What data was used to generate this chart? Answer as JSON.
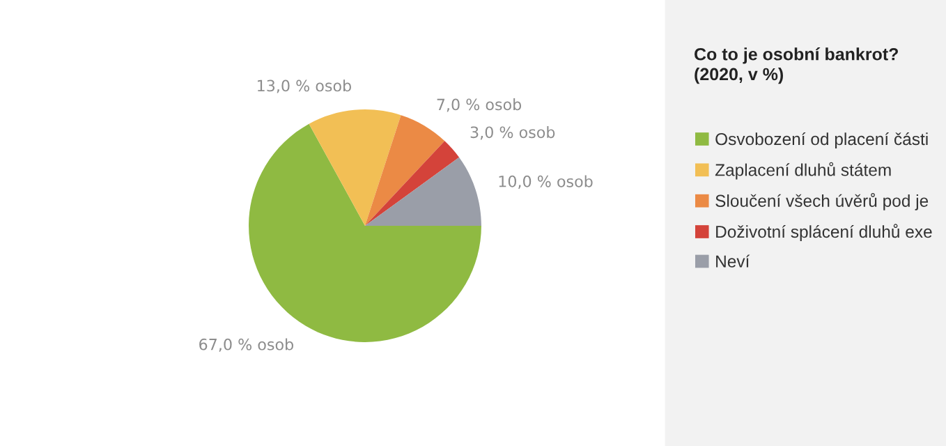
{
  "chart_data": {
    "type": "pie",
    "title": "Co to je osobní bankrot?\n(2020, v %)",
    "categories": [
      "Osvobození od placení části",
      "Zaplacení dluhů státem",
      "Sloučení všech úvěrů pod je",
      "Doživotní splácení dluhů exe",
      "Neví"
    ],
    "values": [
      67.0,
      13.0,
      7.0,
      3.0,
      10.0
    ],
    "colors": [
      "#8fba42",
      "#f2bf55",
      "#eb8a45",
      "#d4433a",
      "#9a9ea8"
    ],
    "value_labels": [
      "67,0 % osob",
      "13,0 % osob",
      "7,0 % osob",
      "3,0 % osob",
      "10,0 % osob"
    ],
    "legend": "right"
  }
}
